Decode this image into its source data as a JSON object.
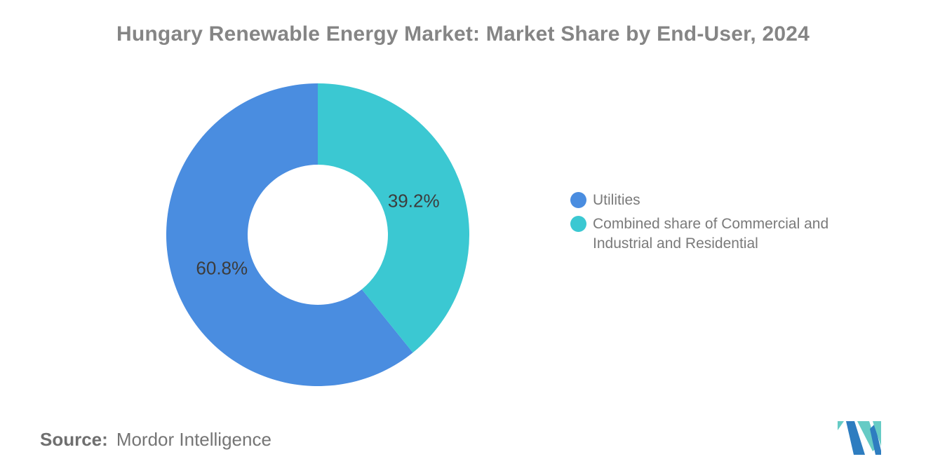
{
  "title": "Hungary Renewable Energy Market: Market Share by End-User, 2024",
  "chart_data": {
    "type": "pie",
    "subtype": "donut",
    "title": "Hungary Renewable Energy Market: Market Share by End-User, 2024",
    "legend_position": "right",
    "start_angle_deg": 0,
    "direction": "counterclockwise",
    "inner_radius_ratio": 0.46,
    "slices": [
      {
        "label": "Utilities",
        "value": 60.8,
        "display": "60.8%",
        "color": "#4A8DE0"
      },
      {
        "label": "Combined share of Commercial and Industrial and Residential",
        "value": 39.2,
        "display": "39.2%",
        "color": "#3BC8D2"
      }
    ]
  },
  "source": {
    "label": "Source:",
    "value": "Mordor Intelligence"
  },
  "logo": {
    "name": "mordor-intelligence-logo",
    "colors": {
      "blue": "#2E7DC0",
      "teal": "#66CBC5"
    }
  },
  "colors": {
    "title_text": "#858585",
    "slice_label_text": "#3C3C3C",
    "legend_text": "#7A7A7A",
    "source_text": "#6F6F6F",
    "background": "#FFFFFF"
  }
}
